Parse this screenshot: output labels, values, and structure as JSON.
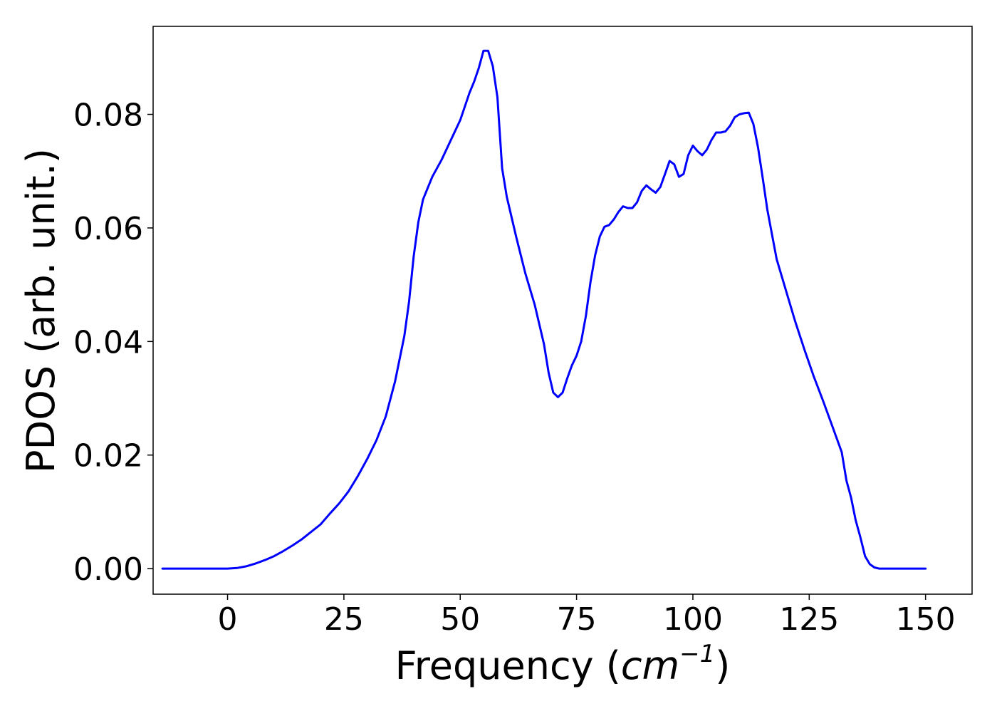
{
  "chart_data": {
    "type": "line",
    "title": "",
    "xlabel": "Frequency (cm⁻¹)",
    "xlabel_parts": {
      "prefix": "Frequency (",
      "unit_base": "cm",
      "unit_exponent": "−1",
      "suffix": ")"
    },
    "ylabel": "PDOS (arb. unit.)",
    "xlim": [
      -16,
      160
    ],
    "ylim": [
      -0.0045,
      0.0955
    ],
    "xticks": [
      0,
      25,
      50,
      75,
      100,
      125,
      150
    ],
    "xtick_labels": [
      "0",
      "25",
      "50",
      "75",
      "100",
      "125",
      "150"
    ],
    "yticks": [
      0.0,
      0.02,
      0.04,
      0.06,
      0.08
    ],
    "ytick_labels": [
      "0.00",
      "0.02",
      "0.04",
      "0.06",
      "0.08"
    ],
    "grid": false,
    "legend": "none",
    "series": [
      {
        "color": "#0000ff",
        "x": [
          -14,
          -10,
          -5,
          0,
          2,
          4,
          6,
          8,
          10,
          12,
          14,
          16,
          18,
          20,
          22,
          24,
          26,
          28,
          30,
          32,
          34,
          36,
          38,
          39,
          40,
          41,
          42,
          43,
          44,
          46,
          48,
          50,
          52,
          53,
          54,
          55,
          56,
          57,
          58,
          59,
          60,
          62,
          64,
          66,
          68,
          69,
          70,
          71,
          72,
          73,
          74,
          75,
          76,
          77,
          78,
          79,
          80,
          81,
          82,
          83,
          84,
          85,
          86,
          87,
          88,
          89,
          90,
          91,
          92,
          93,
          94,
          95,
          96,
          97,
          98,
          99,
          100,
          101,
          102,
          103,
          104,
          105,
          106,
          107,
          108,
          109,
          110,
          111,
          112,
          113,
          114,
          115,
          116,
          118,
          120,
          122,
          124,
          126,
          128,
          130,
          132,
          133,
          134,
          135,
          136,
          137,
          138,
          139,
          140,
          142,
          145,
          150
        ],
        "values": [
          0.0,
          0.0,
          0.0,
          0.0,
          0.0001,
          0.0004,
          0.0009,
          0.0015,
          0.0022,
          0.0031,
          0.0041,
          0.0052,
          0.0065,
          0.0078,
          0.0097,
          0.0115,
          0.0136,
          0.0163,
          0.0193,
          0.0226,
          0.0268,
          0.033,
          0.041,
          0.047,
          0.055,
          0.061,
          0.065,
          0.067,
          0.069,
          0.072,
          0.0755,
          0.079,
          0.0838,
          0.0858,
          0.0882,
          0.0912,
          0.0912,
          0.0885,
          0.083,
          0.0705,
          0.0655,
          0.0585,
          0.052,
          0.0465,
          0.0395,
          0.0345,
          0.031,
          0.0302,
          0.031,
          0.0335,
          0.0358,
          0.0375,
          0.04,
          0.0445,
          0.0505,
          0.0552,
          0.0585,
          0.0602,
          0.0605,
          0.0615,
          0.0628,
          0.0638,
          0.0635,
          0.0635,
          0.0645,
          0.0665,
          0.0675,
          0.0668,
          0.0662,
          0.0672,
          0.0695,
          0.0718,
          0.0712,
          0.069,
          0.0695,
          0.0728,
          0.0745,
          0.0735,
          0.0728,
          0.0738,
          0.0755,
          0.0768,
          0.0768,
          0.077,
          0.078,
          0.0795,
          0.08,
          0.0802,
          0.0803,
          0.0783,
          0.0742,
          0.0688,
          0.0632,
          0.0545,
          0.049,
          0.0435,
          0.0385,
          0.0338,
          0.0295,
          0.025,
          0.0205,
          0.0155,
          0.0125,
          0.0085,
          0.0055,
          0.0022,
          0.0008,
          0.0002,
          0.0,
          0.0,
          0.0,
          0.0
        ]
      }
    ]
  }
}
